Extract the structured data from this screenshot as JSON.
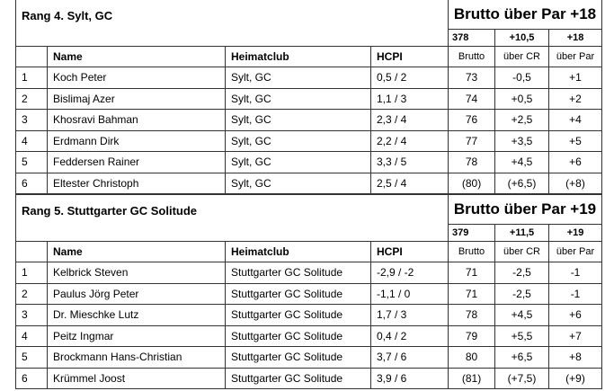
{
  "columns": {
    "name": "Name",
    "club": "Heimatclub",
    "hcpi": "HCPI",
    "brutto": "Brutto",
    "cr": "über CR",
    "par": "über Par"
  },
  "sections": [
    {
      "title": "Rang 4. Sylt, GC",
      "summary": "Brutto über Par +18",
      "total_brutto": "378",
      "total_cr": "+10,5",
      "total_par": "+18",
      "rows": [
        {
          "pos": "1",
          "name": "Koch Peter",
          "club": "Sylt, GC",
          "hcpi": "0,5 / 2",
          "brutto": "73",
          "cr": "-0,5",
          "par": "+1"
        },
        {
          "pos": "2",
          "name": "Bislimaj Azer",
          "club": "Sylt, GC",
          "hcpi": "1,1 / 3",
          "brutto": "74",
          "cr": "+0,5",
          "par": "+2"
        },
        {
          "pos": "3",
          "name": "Khosravi Bahman",
          "club": "Sylt, GC",
          "hcpi": "2,3 / 4",
          "brutto": "76",
          "cr": "+2,5",
          "par": "+4"
        },
        {
          "pos": "4",
          "name": "Erdmann Dirk",
          "club": "Sylt, GC",
          "hcpi": "2,2 / 4",
          "brutto": "77",
          "cr": "+3,5",
          "par": "+5"
        },
        {
          "pos": "5",
          "name": "Feddersen Rainer",
          "club": "Sylt, GC",
          "hcpi": "3,3 / 5",
          "brutto": "78",
          "cr": "+4,5",
          "par": "+6"
        },
        {
          "pos": "6",
          "name": "Eltester Christoph",
          "club": "Sylt, GC",
          "hcpi": "2,5 / 4",
          "brutto": "(80)",
          "cr": "(+6,5)",
          "par": "(+8)"
        }
      ]
    },
    {
      "title": "Rang 5. Stuttgarter GC Solitude",
      "summary": "Brutto über Par +19",
      "total_brutto": "379",
      "total_cr": "+11,5",
      "total_par": "+19",
      "rows": [
        {
          "pos": "1",
          "name": "Kelbrick Steven",
          "club": "Stuttgarter GC Solitude",
          "hcpi": "-2,9 / -2",
          "brutto": "71",
          "cr": "-2,5",
          "par": "-1"
        },
        {
          "pos": "2",
          "name": "Paulus Jörg Peter",
          "club": "Stuttgarter GC Solitude",
          "hcpi": "-1,1 / 0",
          "brutto": "71",
          "cr": "-2,5",
          "par": "-1"
        },
        {
          "pos": "3",
          "name": "Dr. Mieschke Lutz",
          "club": "Stuttgarter GC Solitude",
          "hcpi": "1,7 / 3",
          "brutto": "78",
          "cr": "+4,5",
          "par": "+6"
        },
        {
          "pos": "4",
          "name": "Peitz Ingmar",
          "club": "Stuttgarter GC Solitude",
          "hcpi": "0,4 / 2",
          "brutto": "79",
          "cr": "+5,5",
          "par": "+7"
        },
        {
          "pos": "5",
          "name": "Brockmann Hans-Christian",
          "club": "Stuttgarter GC Solitude",
          "hcpi": "3,7 / 6",
          "brutto": "80",
          "cr": "+6,5",
          "par": "+8"
        },
        {
          "pos": "6",
          "name": "Krümmel Joost",
          "club": "Stuttgarter GC Solitude",
          "hcpi": "3,9 / 6",
          "brutto": "(81)",
          "cr": "(+7,5)",
          "par": "(+9)"
        }
      ]
    }
  ]
}
